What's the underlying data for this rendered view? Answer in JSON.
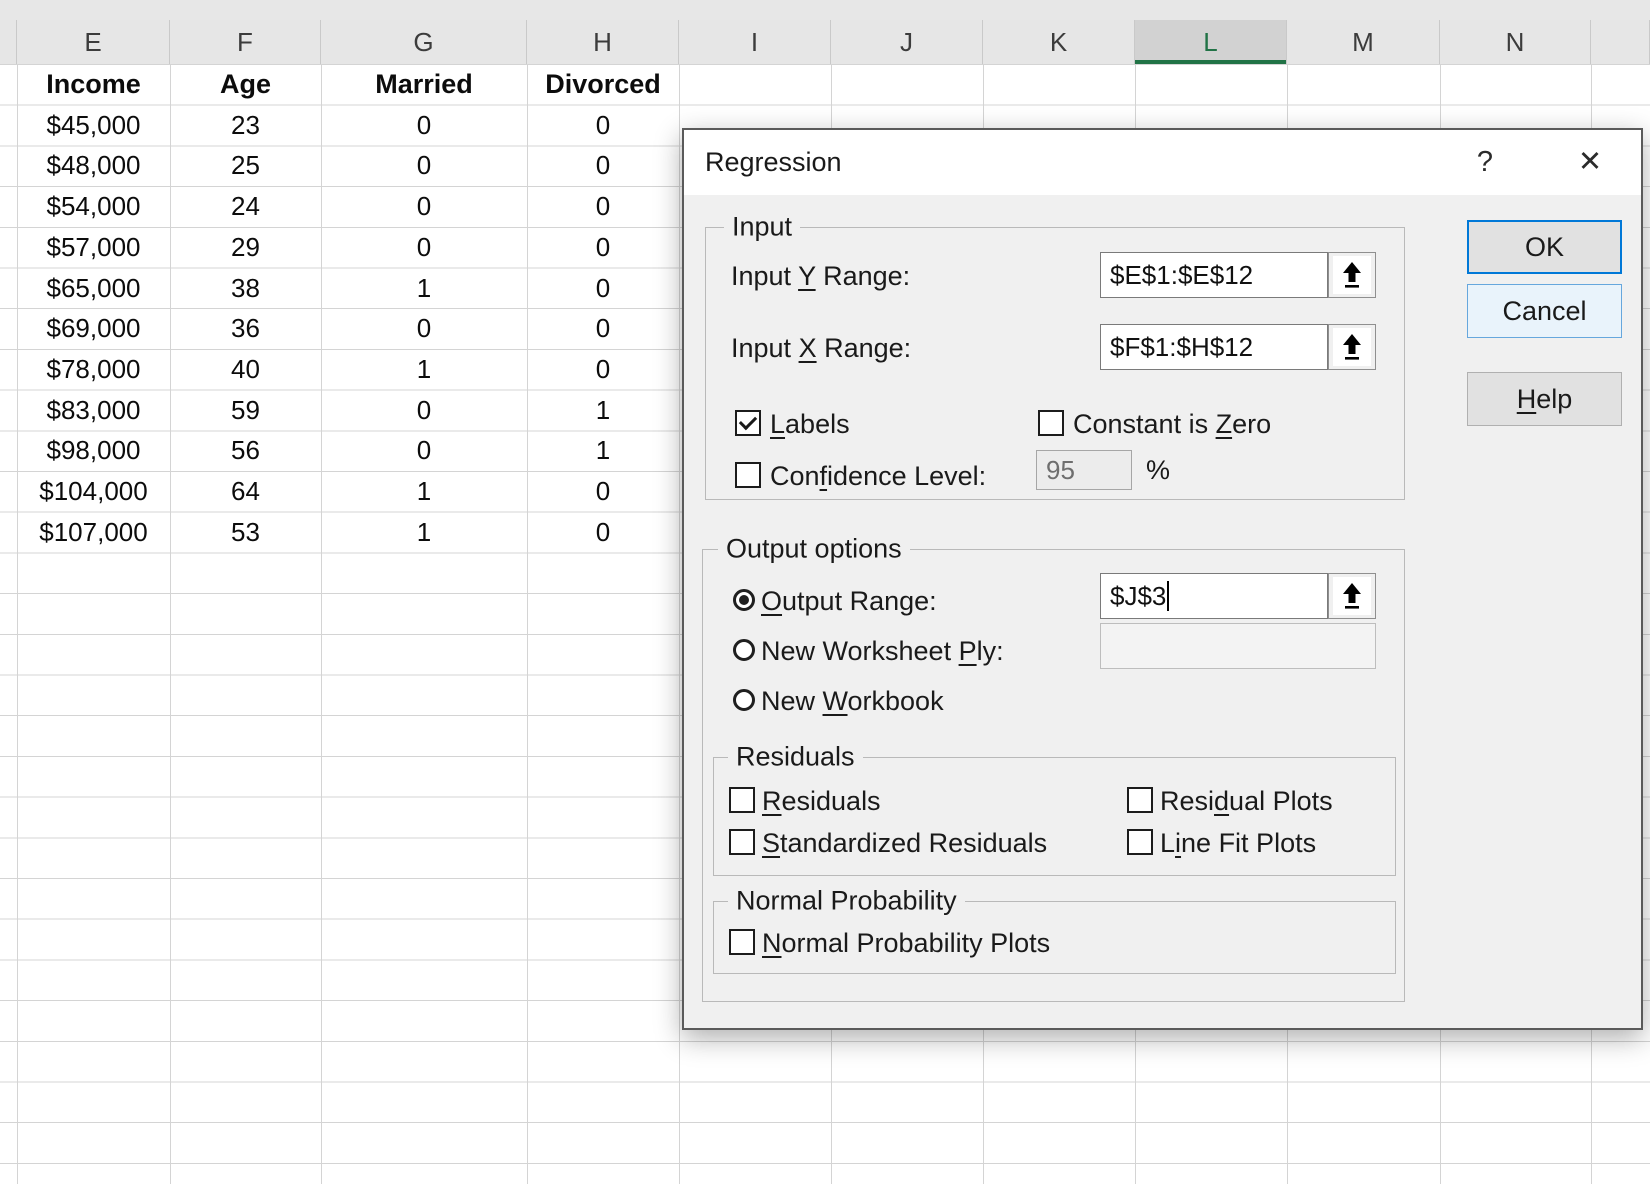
{
  "sheet": {
    "column_headers": [
      "E",
      "F",
      "G",
      "H",
      "I",
      "J",
      "K",
      "L",
      "M",
      "N"
    ],
    "selected_column": "L",
    "selected_color": "#217346",
    "table": {
      "headers": [
        "Income",
        "Age",
        "Married",
        "Divorced"
      ],
      "rows": [
        [
          "$45,000",
          "23",
          "0",
          "0"
        ],
        [
          "$48,000",
          "25",
          "0",
          "0"
        ],
        [
          "$54,000",
          "24",
          "0",
          "0"
        ],
        [
          "$57,000",
          "29",
          "0",
          "0"
        ],
        [
          "$65,000",
          "38",
          "1",
          "0"
        ],
        [
          "$69,000",
          "36",
          "0",
          "0"
        ],
        [
          "$78,000",
          "40",
          "1",
          "0"
        ],
        [
          "$83,000",
          "59",
          "0",
          "1"
        ],
        [
          "$98,000",
          "56",
          "0",
          "1"
        ],
        [
          "$104,000",
          "64",
          "1",
          "0"
        ],
        [
          "$107,000",
          "53",
          "1",
          "0"
        ]
      ]
    }
  },
  "dialog": {
    "title": "Regression",
    "icons": {
      "help": "?",
      "close": "✕",
      "range_picker": "up-arrow-collapse"
    },
    "buttons": {
      "ok": "OK",
      "cancel": "Cancel",
      "help": {
        "pre": "",
        "accel": "H",
        "post": "elp"
      }
    },
    "input": {
      "label": "Input",
      "y_range": {
        "pre": "Input ",
        "accel": "Y",
        "post": " Range:",
        "value": "$E$1:$E$12"
      },
      "x_range": {
        "pre": "Input ",
        "accel": "X",
        "post": " Range:",
        "value": "$F$1:$H$12"
      },
      "labels_cb": {
        "pre": "",
        "accel": "L",
        "post": "abels",
        "checked": true
      },
      "constant_zero_cb": {
        "pre": "Constant is ",
        "accel": "Z",
        "post": "ero",
        "checked": false
      },
      "confidence_cb": {
        "pre": "Con",
        "accel": "f",
        "post": "idence Level:",
        "checked": false
      },
      "confidence_value": "95",
      "confidence_unit": "%"
    },
    "output": {
      "label": "Output options",
      "output_range": {
        "pre": "",
        "accel": "O",
        "post": "utput Range:",
        "selected": true,
        "value": "$J$3"
      },
      "new_worksheet_ply": {
        "pre": "New Worksheet ",
        "accel": "P",
        "post": "ly:",
        "selected": false,
        "value": ""
      },
      "new_workbook": {
        "pre": "New ",
        "accel": "W",
        "post": "orkbook",
        "selected": false
      },
      "residuals_group": {
        "label": "Residuals",
        "residuals_cb": {
          "pre": "",
          "accel": "R",
          "post": "esiduals",
          "checked": false
        },
        "standardized_cb": {
          "pre": "",
          "accel": "S",
          "post": "tandardized Residuals",
          "checked": false
        },
        "residual_plots_cb": {
          "pre": "Resi",
          "accel": "d",
          "post": "ual Plots",
          "checked": false
        },
        "line_fit_cb": {
          "pre": "L",
          "accel": "i",
          "post": "ne Fit Plots",
          "checked": false
        }
      },
      "normal_group": {
        "label": "Normal Probability",
        "npp_cb": {
          "pre": "",
          "accel": "N",
          "post": "ormal Probability Plots",
          "checked": false
        }
      }
    }
  }
}
